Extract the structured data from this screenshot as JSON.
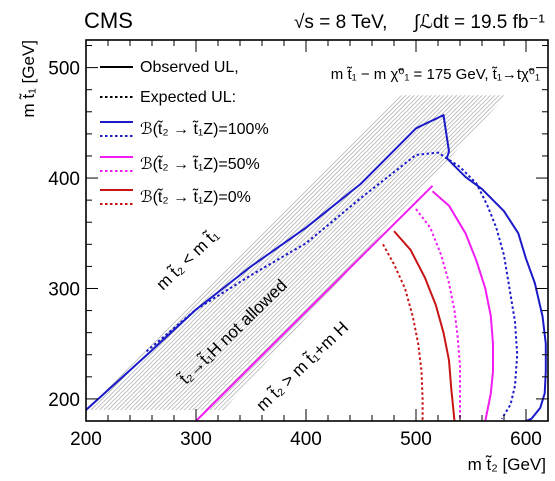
{
  "header": {
    "experiment": "CMS",
    "energy_label": "√s = 8 TeV,",
    "lumi_label": "∫ℒdt = 19.5 fb⁻¹"
  },
  "chart_data": {
    "type": "line",
    "xlabel": "m t̃₂ [GeV]",
    "ylabel": "m t̃₁ [GeV]",
    "xlim": [
      200,
      620
    ],
    "ylim": [
      180,
      525
    ],
    "xticks": [
      200,
      300,
      400,
      500,
      600
    ],
    "yticks": [
      200,
      300,
      400,
      500
    ],
    "condition_label": "m t̃₁ − m χ̃⁰₁ = 175 GeV, t̃₁→tχ̃⁰₁",
    "legend": {
      "placement": "top-left",
      "entries": [
        {
          "label": "Observed UL,",
          "style": "solid",
          "color": "#000000"
        },
        {
          "label": "Expected UL:",
          "style": "dotted",
          "color": "#000000"
        },
        {
          "label": "ℬ(t̃₂ → t̃₁Z)=100%",
          "style": "box",
          "color": "#1a1ac8"
        },
        {
          "label": "ℬ(t̃₂ → t̃₁Z)=50%",
          "style": "box",
          "color": "#f21cf2"
        },
        {
          "label": "ℬ(t̃₂ → t̃₁Z)=0%",
          "style": "box",
          "color": "#c81414"
        }
      ]
    },
    "annotations": [
      {
        "text": "m t̃₂ < m t̃₁"
      },
      {
        "text": "t̃₂→t̃₁H not allowed"
      },
      {
        "text": "m t̃₂ > m t̃₁+m H"
      }
    ],
    "excluded_region": {
      "description": "hatched band",
      "polygon": [
        [
          200,
          190
        ],
        [
          485,
          475
        ],
        [
          582,
          475
        ],
        [
          325,
          190
        ]
      ]
    },
    "diagonal": {
      "x": [
        300,
        515
      ],
      "y": [
        180,
        393
      ],
      "color": "#f21cf2"
    },
    "series": [
      {
        "name": "ℬ(t̃₂ → t̃₁Z)=100%",
        "kind": "observed",
        "color": "#1a1ac8",
        "style": "solid",
        "x": [
          200,
          260,
          300,
          350,
          400,
          450,
          500,
          525,
          530,
          528,
          545,
          560,
          580,
          593,
          600,
          608,
          615,
          618,
          618,
          617,
          613,
          605,
          595
        ],
        "y": [
          190,
          244,
          281,
          320,
          355,
          395,
          445,
          457,
          424,
          418,
          401,
          390,
          370,
          350,
          327,
          305,
          275,
          250,
          225,
          205,
          192,
          182,
          178
        ]
      },
      {
        "name": "ℬ(t̃₂ → t̃₁Z)=100%",
        "kind": "expected",
        "color": "#1a1ac8",
        "style": "dotted",
        "x": [
          255,
          300,
          350,
          400,
          450,
          500,
          520,
          540,
          555,
          565,
          573,
          580,
          585,
          590,
          592,
          590,
          586,
          578
        ],
        "y": [
          243,
          281,
          312,
          341,
          382,
          421,
          423,
          410,
          395,
          375,
          355,
          330,
          300,
          270,
          240,
          212,
          195,
          182
        ]
      },
      {
        "name": "ℬ(t̃₂ → t̃₁Z)=50%",
        "kind": "observed",
        "color": "#f21cf2",
        "style": "solid",
        "x": [
          515,
          530,
          545,
          555,
          563,
          568,
          570,
          570,
          568,
          565,
          563
        ],
        "y": [
          388,
          375,
          350,
          325,
          300,
          275,
          250,
          225,
          205,
          190,
          180
        ]
      },
      {
        "name": "ℬ(t̃₂ → t̃₁Z)=50%",
        "kind": "expected",
        "color": "#f21cf2",
        "style": "dotted",
        "x": [
          500,
          513,
          523,
          530,
          535,
          538,
          540,
          540,
          540
        ],
        "y": [
          372,
          355,
          330,
          305,
          280,
          255,
          230,
          205,
          182
        ]
      },
      {
        "name": "ℬ(t̃₂ → t̃₁Z)=0%",
        "kind": "observed",
        "color": "#c81414",
        "style": "solid",
        "x": [
          480,
          495,
          508,
          518,
          525,
          530,
          532,
          534,
          535
        ],
        "y": [
          352,
          335,
          310,
          285,
          260,
          235,
          210,
          190,
          180
        ]
      },
      {
        "name": "ℬ(t̃₂ → t̃₁Z)=0%",
        "kind": "expected",
        "color": "#c81414",
        "style": "dotted",
        "x": [
          470,
          480,
          490,
          497,
          502,
          505,
          506,
          506
        ],
        "y": [
          340,
          322,
          300,
          275,
          250,
          225,
          200,
          180
        ]
      }
    ]
  }
}
